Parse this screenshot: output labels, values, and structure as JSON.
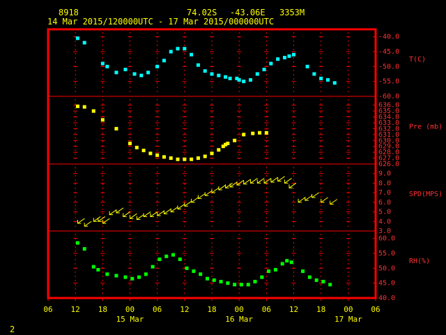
{
  "header": {
    "station": "8918",
    "lat": "74.02S",
    "lon": "-43.06E",
    "elev": "3353M",
    "range": "14 Mar 2015/120000UTC - 17 Mar 2015/000000UTC"
  },
  "page_number": "2",
  "colors": {
    "frame": "#ff0000",
    "text": "#ffff00",
    "temperature": "#00ffff",
    "pressure": "#ffff00",
    "wind": "#ffff00",
    "humidity": "#00ff00"
  },
  "chart_data": {
    "type": "scatter",
    "x_unit": "hours since 14 Mar 06 UTC",
    "xlim": [
      0,
      72
    ],
    "x_tick_labels": [
      "06",
      "12",
      "18",
      "00",
      "06",
      "12",
      "18",
      "00",
      "06",
      "12",
      "18",
      "00",
      "06"
    ],
    "date_labels": [
      {
        "hour": 18,
        "label": "15 Mar"
      },
      {
        "hour": 42,
        "label": "16 Mar"
      },
      {
        "hour": 66,
        "label": "17 Mar"
      }
    ],
    "panels": [
      {
        "label": "T(C)",
        "ylim": [
          -60,
          -37.5
        ],
        "ticks": [
          "-40.0",
          "-45.0",
          "-50.0",
          "-55.0",
          "-60.0"
        ],
        "tick_values": [
          -40,
          -45,
          -50,
          -55,
          -60
        ],
        "marker": "square",
        "points": [
          [
            6.5,
            -40.5
          ],
          [
            8,
            -42
          ],
          [
            12,
            -49
          ],
          [
            13,
            -50
          ],
          [
            15,
            -52
          ],
          [
            17,
            -51
          ],
          [
            19,
            -52.5
          ],
          [
            20.5,
            -53
          ],
          [
            22,
            -52
          ],
          [
            24,
            -50
          ],
          [
            25.5,
            -48
          ],
          [
            27,
            -45
          ],
          [
            28.5,
            -44
          ],
          [
            30,
            -44
          ],
          [
            31.5,
            -46
          ],
          [
            33,
            -49.5
          ],
          [
            34.5,
            -51.5
          ],
          [
            36,
            -52.5
          ],
          [
            37.5,
            -53
          ],
          [
            39,
            -53.5
          ],
          [
            40,
            -54
          ],
          [
            41.5,
            -54
          ],
          [
            42,
            -54.5
          ],
          [
            43,
            -55
          ],
          [
            44.5,
            -54.5
          ],
          [
            46,
            -52.5
          ],
          [
            47.5,
            -51
          ],
          [
            49,
            -49
          ],
          [
            50.5,
            -47.5
          ],
          [
            52,
            -47
          ],
          [
            53,
            -46.5
          ],
          [
            54,
            -46
          ],
          [
            57,
            -50
          ],
          [
            58.5,
            -52.5
          ],
          [
            60,
            -54
          ],
          [
            61.5,
            -54.5
          ],
          [
            63,
            -55.5
          ]
        ]
      },
      {
        "label": "Pre (mb)",
        "ylim": [
          626,
          637.5
        ],
        "ticks": [
          "636.0",
          "635.0",
          "634.0",
          "633.0",
          "632.0",
          "631.0",
          "630.0",
          "629.0",
          "628.0",
          "627.0",
          "626.0"
        ],
        "tick_values": [
          636,
          635,
          634,
          633,
          632,
          631,
          630,
          629,
          628,
          627,
          626
        ],
        "marker": "square",
        "points": [
          [
            6.5,
            635.8
          ],
          [
            8,
            635.7
          ],
          [
            10,
            635
          ],
          [
            12,
            633.5
          ],
          [
            15,
            632
          ],
          [
            18,
            629.5
          ],
          [
            19.5,
            628.8
          ],
          [
            21,
            628.3
          ],
          [
            22.5,
            627.8
          ],
          [
            24,
            627.5
          ],
          [
            25.5,
            627.2
          ],
          [
            27,
            627
          ],
          [
            28.5,
            626.8
          ],
          [
            30,
            626.8
          ],
          [
            31.5,
            626.8
          ],
          [
            33,
            627
          ],
          [
            34.5,
            627.3
          ],
          [
            36,
            627.8
          ],
          [
            37.5,
            628.4
          ],
          [
            38.5,
            629
          ],
          [
            39,
            629.3
          ],
          [
            39.5,
            629.5
          ],
          [
            41,
            630
          ],
          [
            43,
            631
          ],
          [
            45,
            631.2
          ],
          [
            46.5,
            631.3
          ],
          [
            48,
            631.3
          ]
        ]
      },
      {
        "label": "SPD(MPS)",
        "ylim": [
          3,
          10
        ],
        "ticks": [
          "9.0",
          "8.0",
          "7.0",
          "6.0",
          "5.0",
          "4.0",
          "3.0"
        ],
        "tick_values": [
          9,
          8,
          7,
          6,
          5,
          4,
          3
        ],
        "marker": "arrow",
        "points": [
          [
            6.5,
            3.8
          ],
          [
            8,
            3.5
          ],
          [
            10,
            4
          ],
          [
            11,
            4
          ],
          [
            12,
            3.8
          ],
          [
            13.5,
            4.7
          ],
          [
            15,
            4.9
          ],
          [
            16.5,
            4.5
          ],
          [
            18,
            4.3
          ],
          [
            19.5,
            4.2
          ],
          [
            21,
            4.5
          ],
          [
            22.5,
            4.5
          ],
          [
            24,
            4.6
          ],
          [
            25.5,
            4.8
          ],
          [
            27,
            5
          ],
          [
            28.5,
            5.3
          ],
          [
            30,
            5.6
          ],
          [
            31.5,
            6
          ],
          [
            33,
            6.4
          ],
          [
            34.5,
            6.7
          ],
          [
            36,
            7
          ],
          [
            37.5,
            7.3
          ],
          [
            39,
            7.5
          ],
          [
            40,
            7.6
          ],
          [
            41.5,
            7.8
          ],
          [
            43,
            7.9
          ],
          [
            44.5,
            8
          ],
          [
            46,
            8
          ],
          [
            47.5,
            8
          ],
          [
            49,
            8.1
          ],
          [
            50.5,
            8.2
          ],
          [
            52,
            8
          ],
          [
            53,
            7.5
          ],
          [
            55,
            6
          ],
          [
            56.5,
            6.2
          ],
          [
            58,
            6.5
          ],
          [
            60,
            6
          ],
          [
            62,
            5.8
          ]
        ]
      },
      {
        "label": "RH(%)",
        "ylim": [
          40,
          62.5
        ],
        "ticks": [
          "60.0",
          "55.0",
          "50.0",
          "45.0",
          "40.0"
        ],
        "tick_values": [
          60,
          55,
          50,
          45,
          40
        ],
        "marker": "square",
        "points": [
          [
            6.5,
            58.5
          ],
          [
            8,
            56.5
          ],
          [
            10,
            50.5
          ],
          [
            11,
            49.5
          ],
          [
            13,
            48
          ],
          [
            15,
            47.5
          ],
          [
            17,
            47
          ],
          [
            18.5,
            46.5
          ],
          [
            20,
            47
          ],
          [
            21.5,
            48
          ],
          [
            23,
            50.5
          ],
          [
            24.5,
            53
          ],
          [
            26,
            54
          ],
          [
            27.5,
            54.5
          ],
          [
            29,
            53
          ],
          [
            30.5,
            50
          ],
          [
            32,
            49
          ],
          [
            33.5,
            48
          ],
          [
            35,
            46.5
          ],
          [
            36.5,
            46
          ],
          [
            38,
            45.5
          ],
          [
            39.5,
            45
          ],
          [
            41,
            44.5
          ],
          [
            42.5,
            44.5
          ],
          [
            44,
            44.5
          ],
          [
            45.5,
            45.5
          ],
          [
            47,
            47
          ],
          [
            48.5,
            49
          ],
          [
            50,
            49.5
          ],
          [
            51.5,
            51.5
          ],
          [
            52.5,
            52.5
          ],
          [
            53.5,
            52
          ],
          [
            56,
            49
          ],
          [
            57.5,
            47
          ],
          [
            59,
            46
          ],
          [
            60.5,
            45.5
          ],
          [
            62,
            44.5
          ]
        ]
      }
    ]
  }
}
